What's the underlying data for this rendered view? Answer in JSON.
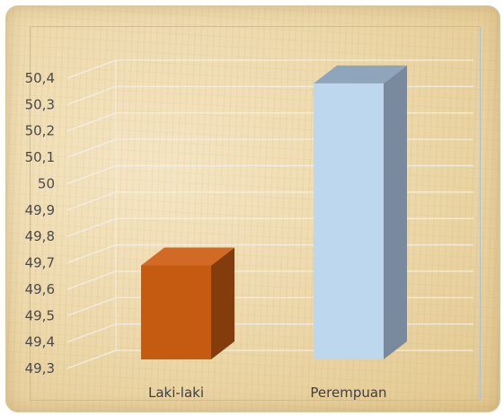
{
  "chart_data": {
    "type": "bar",
    "title": "",
    "xlabel": "",
    "ylabel": "",
    "categories": [
      "Laki-laki",
      "Perempuan"
    ],
    "values": [
      49.69,
      50.38
    ],
    "ylim": [
      49.3,
      50.4
    ],
    "yticks": [
      "49,3",
      "49,4",
      "49,5",
      "49,6",
      "49,7",
      "49,8",
      "49,9",
      "50",
      "50,1",
      "50,2",
      "50,3",
      "50,4"
    ],
    "grid": true,
    "legend": "none",
    "style": "3d-column",
    "colors": {
      "Laki-laki": {
        "front": "#c55a11",
        "side": "#843c0c",
        "top": "#d06a24"
      },
      "Perempuan": {
        "front": "#bdd7ee",
        "side": "#7a8a9e",
        "top": "#8fa5bc"
      }
    }
  }
}
